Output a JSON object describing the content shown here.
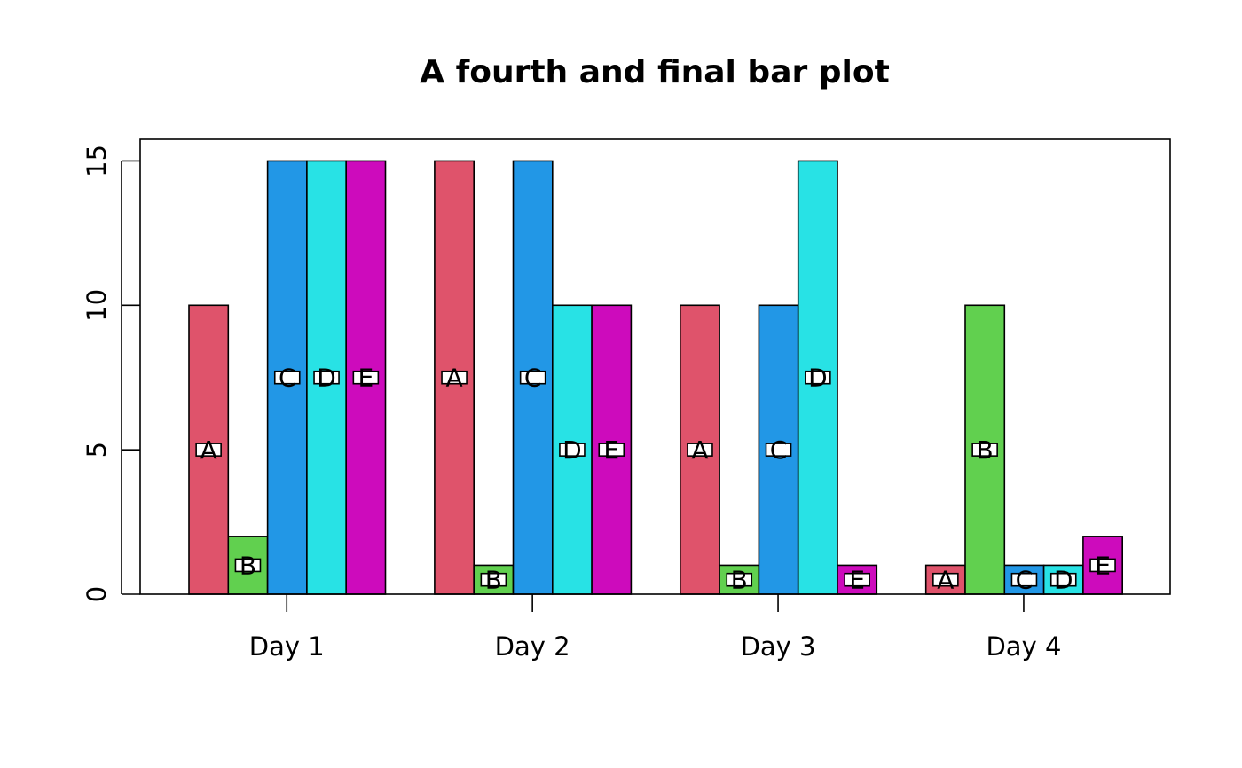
{
  "chart_data": {
    "type": "bar",
    "layout": "grouped",
    "title": "A fourth and final bar plot",
    "xlabel": "",
    "ylabel": "",
    "categories": [
      "Day 1",
      "Day 2",
      "Day 3",
      "Day 4"
    ],
    "ylim": [
      0,
      15.75
    ],
    "yticks": [
      0,
      5,
      10,
      15
    ],
    "series": [
      {
        "label": "A",
        "color": "#DF536B",
        "values": [
          10,
          15,
          10,
          1
        ]
      },
      {
        "label": "B",
        "color": "#61D04F",
        "values": [
          2,
          1,
          1,
          10
        ]
      },
      {
        "label": "C",
        "color": "#2297E6",
        "values": [
          15,
          15,
          10,
          1
        ]
      },
      {
        "label": "D",
        "color": "#28E2E5",
        "values": [
          15,
          10,
          15,
          1
        ]
      },
      {
        "label": "E",
        "color": "#CD0BBC",
        "values": [
          15,
          10,
          1,
          2
        ]
      }
    ],
    "bar_labels": "series label at half bar height",
    "grid": false,
    "legend": "none"
  }
}
